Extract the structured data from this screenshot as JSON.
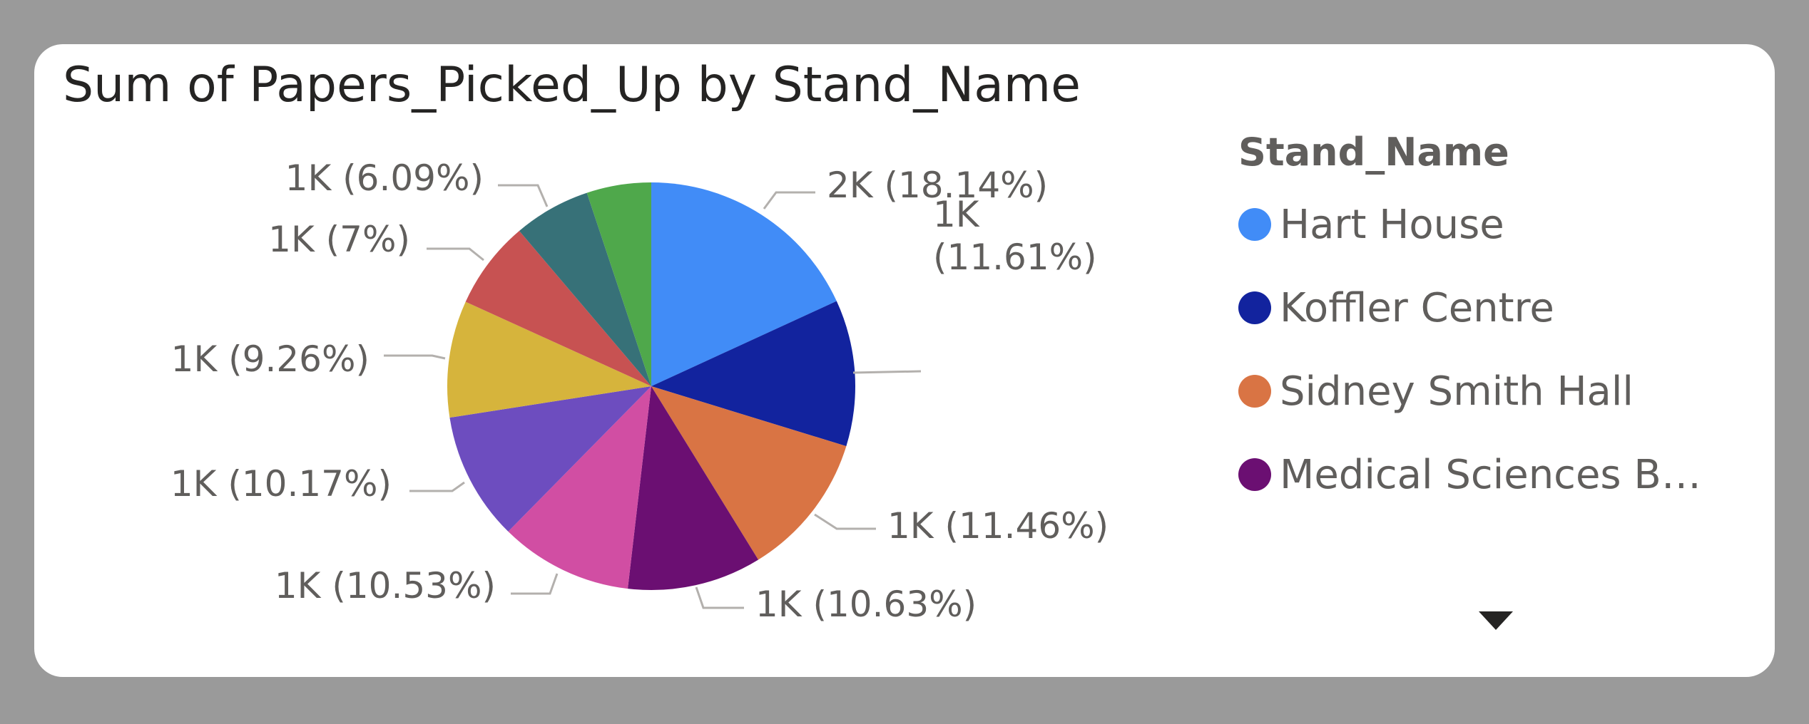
{
  "chart_data": {
    "type": "pie",
    "title": "Sum of Papers_Picked_Up by Stand_Name",
    "legend_title": "Stand_Name",
    "legend_position": "right",
    "slices": [
      {
        "name": "Hart House",
        "percent": 18.14,
        "label": "2K (18.14%)",
        "color": "#418cf7"
      },
      {
        "name": "Koffler Centre",
        "percent": 11.61,
        "label": "1K (11.61%)",
        "color": "#12239e"
      },
      {
        "name": "Sidney Smith Hall",
        "percent": 11.46,
        "label": "1K (11.46%)",
        "color": "#d97444"
      },
      {
        "name": "Medical Sciences Bu...",
        "percent": 10.63,
        "label": "1K (10.63%)",
        "color": "#6b0f72"
      },
      {
        "name": "",
        "percent": 10.53,
        "label": "1K (10.53%)",
        "color": "#d14ea3"
      },
      {
        "name": "",
        "percent": 10.17,
        "label": "1K (10.17%)",
        "color": "#6d4dbf"
      },
      {
        "name": "",
        "percent": 9.26,
        "label": "1K (9.26%)",
        "color": "#d6b43c"
      },
      {
        "name": "",
        "percent": 7,
        "label": "1K (7%)",
        "color": "#c75252"
      },
      {
        "name": "",
        "percent": 6.09,
        "label": "1K (6.09%)",
        "color": "#377178"
      },
      {
        "name": "",
        "percent": 5.11,
        "label": "",
        "color": "#4fa84b"
      }
    ]
  }
}
